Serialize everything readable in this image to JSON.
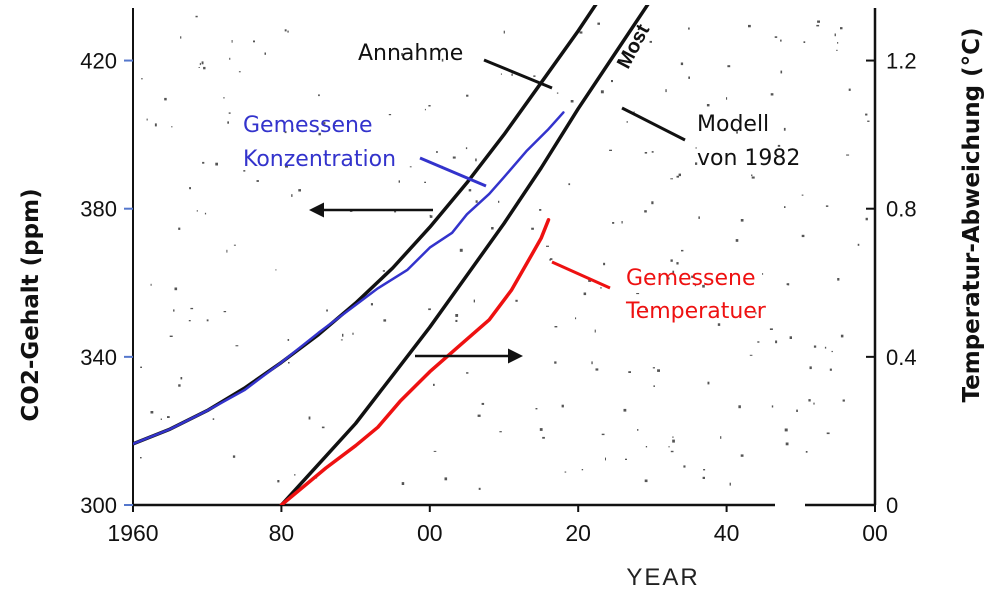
{
  "chart_data": {
    "type": "line",
    "title": "",
    "xlabel": "YEAR",
    "ylabel_left": "CO2-Gehalt (ppm)",
    "ylabel_right": "Temperatur-Abweichung (°C)",
    "xlim": [
      1960,
      2060
    ],
    "ylim_left": [
      300,
      435
    ],
    "ylim_right": [
      0,
      1.35
    ],
    "x_ticks": [
      1960,
      1980,
      2000,
      2020,
      2040,
      2060
    ],
    "x_tick_labels": [
      "1960",
      "80",
      "00",
      "20",
      "40",
      "00"
    ],
    "y_ticks_left": [
      300,
      340,
      380,
      420
    ],
    "y_tick_labels_left": [
      "300",
      "340",
      "380",
      "420"
    ],
    "y_ticks_right": [
      0,
      0.4,
      0.8,
      1.2
    ],
    "y_tick_labels_right": [
      "0",
      "0.4",
      "0.8",
      "1.2"
    ],
    "axis_break": "between 40 and 00 on the x-axis",
    "grid": false,
    "series": [
      {
        "name": "Annahme",
        "axis": "left",
        "color": "#111111",
        "x": [
          1960,
          1965,
          1970,
          1975,
          1980,
          1985,
          1990,
          1995,
          2000,
          2005,
          2010,
          2015,
          2020,
          2025
        ],
        "y": [
          316.5,
          320.5,
          325.5,
          331.5,
          338.5,
          346,
          354.5,
          364,
          375,
          387,
          400,
          414,
          428,
          443
        ]
      },
      {
        "name": "Gemessene Konzentration",
        "axis": "left",
        "color": "#3333cc",
        "x": [
          1960,
          1965,
          1970,
          1975,
          1980,
          1985,
          1990,
          1993,
          1995,
          1997,
          2000,
          2003,
          2005,
          2008,
          2010,
          2013,
          2016,
          2018
        ],
        "y": [
          316.5,
          320.5,
          325.5,
          331,
          338.5,
          346.5,
          354,
          358.5,
          361,
          363.5,
          369.5,
          373.5,
          378.5,
          384,
          388.5,
          395.5,
          401.5,
          406
        ]
      },
      {
        "name": "Modell von 1982",
        "axis": "right",
        "color": "#111111",
        "x": [
          1980,
          1985,
          1990,
          1995,
          2000,
          2005,
          2010,
          2015,
          2020,
          2025,
          2030
        ],
        "y": [
          0.0,
          0.11,
          0.22,
          0.35,
          0.48,
          0.62,
          0.76,
          0.91,
          1.07,
          1.22,
          1.37
        ]
      },
      {
        "name": "Gemessene Temperatuer",
        "axis": "right",
        "color": "#ee1111",
        "x": [
          1980,
          1983,
          1986,
          1990,
          1993,
          1996,
          2000,
          2004,
          2008,
          2011,
          2013,
          2015,
          2016
        ],
        "y": [
          0.0,
          0.05,
          0.1,
          0.16,
          0.21,
          0.28,
          0.36,
          0.43,
          0.5,
          0.58,
          0.65,
          0.72,
          0.77
        ]
      }
    ],
    "annotations": [
      {
        "text": "Annahme",
        "color": "#111111"
      },
      {
        "lines": [
          "Gemessene",
          "Konzentration"
        ],
        "color": "#3333cc"
      },
      {
        "lines": [
          "Modell",
          "von 1982"
        ],
        "color": "#111111"
      },
      {
        "lines": [
          "Gemessene",
          "Temperatuer"
        ],
        "color": "#ee1111"
      },
      {
        "text": "Most",
        "color": "#111111"
      }
    ]
  }
}
